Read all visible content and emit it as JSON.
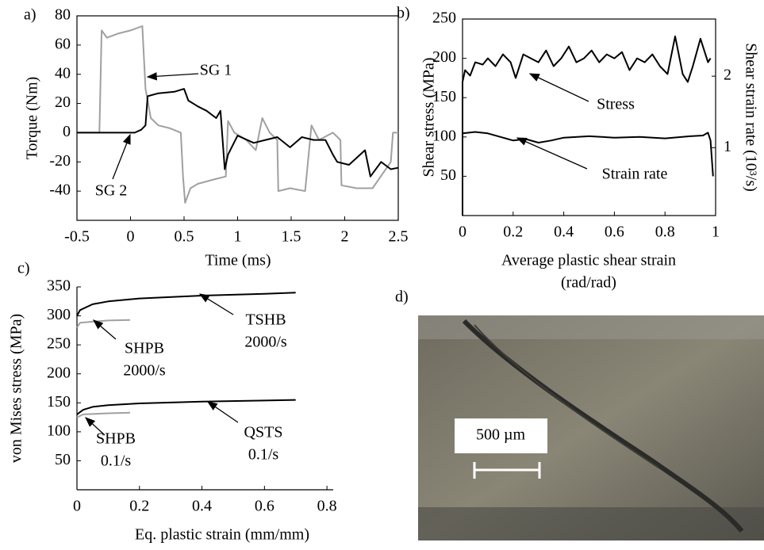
{
  "chart_data": [
    {
      "type": "line",
      "panel_label": "a)",
      "xlabel": [
        "Time (ms)"
      ],
      "ylabel": "Torque (Nm)",
      "xlim": [
        -0.5,
        2.5
      ],
      "ylim": [
        -60,
        80
      ],
      "xticks": [
        -0.5,
        0,
        0.5,
        1,
        1.5,
        2,
        2.5
      ],
      "yticks": [
        -40,
        -20,
        0,
        20,
        40,
        60,
        80
      ],
      "series": [
        {
          "color": "#a0a0a0",
          "x": [
            -0.5,
            -0.29,
            -0.27,
            -0.22,
            -0.11,
            0.0,
            0.11,
            0.14,
            0.19,
            0.26,
            0.37,
            0.47,
            0.49,
            0.51,
            0.56,
            0.63,
            0.78,
            0.89,
            0.91,
            0.97,
            1.08,
            1.17,
            1.23,
            1.3,
            1.37,
            1.38,
            1.49,
            1.63,
            1.69,
            1.76,
            1.89,
            1.96,
            1.97,
            2.11,
            2.26,
            2.43,
            2.45,
            2.5
          ],
          "values": [
            0,
            0,
            70,
            65,
            68,
            70,
            73,
            30,
            10,
            5,
            3,
            0,
            -30,
            -48,
            -38,
            -35,
            -32,
            -30,
            8,
            0,
            -5,
            -12,
            10,
            0,
            -5,
            -40,
            -38,
            -40,
            5,
            -5,
            0,
            -5,
            -36,
            -38,
            -38,
            -20,
            0,
            0
          ]
        },
        {
          "color": "#000000",
          "x": [
            -0.5,
            0.04,
            0.1,
            0.14,
            0.16,
            0.26,
            0.41,
            0.5,
            0.54,
            0.63,
            0.71,
            0.8,
            0.84,
            0.88,
            0.91,
            1.0,
            1.15,
            1.26,
            1.37,
            1.49,
            1.6,
            1.71,
            1.82,
            1.89,
            1.93,
            2.04,
            2.19,
            2.24,
            2.34,
            2.43,
            2.5
          ],
          "values": [
            0,
            0,
            2,
            5,
            25,
            27,
            28,
            30,
            22,
            18,
            15,
            10,
            15,
            -25,
            -15,
            -2,
            -7,
            -5,
            -3,
            -10,
            -3,
            -5,
            -5,
            -15,
            -20,
            -22,
            -12,
            -30,
            -20,
            -25,
            -24
          ]
        }
      ],
      "annotations": [
        {
          "text": [
            "SG 1"
          ]
        },
        {
          "text": [
            "SG 2"
          ]
        }
      ]
    },
    {
      "type": "line",
      "panel_label": "b)",
      "xlabel": [
        "Average plastic shear strain",
        "(rad/rad)"
      ],
      "ylabel": "Shear stress (MPa)",
      "y2label": "Shear strain rate (10³/s)",
      "xlim": [
        0,
        1
      ],
      "ylim": [
        0,
        250
      ],
      "y2lim": [
        0.05,
        2.8
      ],
      "xticks": [
        0,
        0.2,
        0.4,
        0.6,
        0.8,
        1
      ],
      "yticks": [
        50,
        100,
        150,
        200,
        250
      ],
      "y2ticks": [
        1,
        2
      ],
      "series": [
        {
          "color": "#000000",
          "x": [
            0,
            0.0,
            0.01,
            0.03,
            0.05,
            0.08,
            0.1,
            0.13,
            0.16,
            0.19,
            0.21,
            0.24,
            0.27,
            0.3,
            0.33,
            0.36,
            0.39,
            0.42,
            0.45,
            0.48,
            0.51,
            0.54,
            0.57,
            0.6,
            0.63,
            0.66,
            0.69,
            0.72,
            0.75,
            0.78,
            0.81,
            0.84,
            0.87,
            0.89,
            0.91,
            0.94,
            0.97,
            0.98
          ],
          "values": [
            0,
            170,
            185,
            178,
            195,
            192,
            200,
            190,
            205,
            195,
            175,
            205,
            200,
            195,
            210,
            190,
            200,
            215,
            195,
            200,
            210,
            195,
            205,
            200,
            208,
            185,
            200,
            195,
            205,
            190,
            180,
            228,
            180,
            170,
            190,
            225,
            195,
            200
          ]
        },
        {
          "color": "#000000",
          "axis": "y2",
          "x": [
            0,
            0.05,
            0.1,
            0.15,
            0.2,
            0.25,
            0.3,
            0.35,
            0.4,
            0.5,
            0.6,
            0.7,
            0.8,
            0.9,
            0.95,
            0.97,
            0.98,
            0.99
          ],
          "values": [
            1.2,
            1.22,
            1.2,
            1.15,
            1.1,
            1.12,
            1.07,
            1.1,
            1.14,
            1.16,
            1.14,
            1.15,
            1.13,
            1.16,
            1.17,
            1.21,
            1.1,
            0.6
          ]
        }
      ],
      "annotations": [
        {
          "text": [
            "Stress"
          ]
        },
        {
          "text": [
            "Strain rate"
          ]
        }
      ]
    },
    {
      "type": "line",
      "panel_label": "c)",
      "xlabel": [
        "Eq. plastic strain (mm/mm)"
      ],
      "ylabel": "von Mises stress (MPa)",
      "xlim": [
        0,
        0.82
      ],
      "ylim": [
        0,
        350
      ],
      "xticks": [
        0,
        0.2,
        0.4,
        0.6,
        0.8
      ],
      "yticks": [
        50,
        100,
        150,
        200,
        250,
        300,
        350
      ],
      "series": [
        {
          "color": "#000000",
          "x": [
            0,
            0.01,
            0.05,
            0.1,
            0.2,
            0.4,
            0.6,
            0.7
          ],
          "values": [
            300,
            310,
            320,
            325,
            330,
            335,
            338,
            340
          ]
        },
        {
          "color": "#a0a0a0",
          "x": [
            0,
            0.01,
            0.05,
            0.1,
            0.17
          ],
          "values": [
            280,
            288,
            290,
            292,
            293
          ]
        },
        {
          "color": "#000000",
          "x": [
            0,
            0.02,
            0.05,
            0.1,
            0.2,
            0.4,
            0.6,
            0.7
          ],
          "values": [
            130,
            138,
            143,
            146,
            149,
            152,
            154,
            155
          ]
        },
        {
          "color": "#a0a0a0",
          "x": [
            0,
            0.02,
            0.1,
            0.17
          ],
          "values": [
            125,
            130,
            132,
            133
          ]
        }
      ],
      "annotations": [
        {
          "text": [
            "TSHB",
            "2000/s"
          ]
        },
        {
          "text": [
            "SHPB",
            "2000/s"
          ]
        },
        {
          "text": [
            "QSTS",
            "0.1/s"
          ]
        },
        {
          "text": [
            "SHPB",
            "0.1/s"
          ]
        }
      ]
    }
  ],
  "panel_d": {
    "panel_label": "d)",
    "scale_bar": "500 µm"
  }
}
